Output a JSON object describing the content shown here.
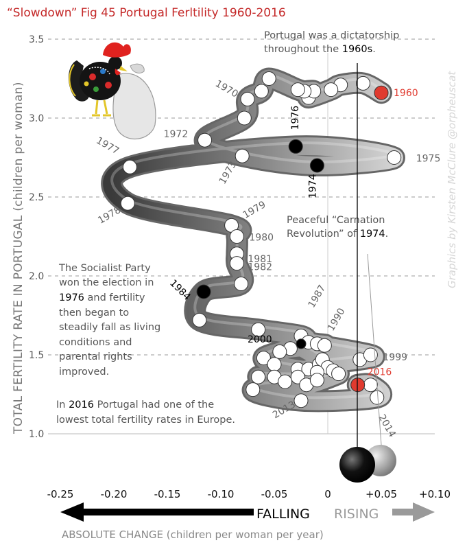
{
  "chart_data": {
    "type": "scatter",
    "title": "“Slowdown” Fig 45 Portugal Ferltility 1960-2016",
    "xlabel": "ABSOLUTE CHANGE (children per woman per year)",
    "ylabel": "TOTAL FERTILITY RATE IN PORTUGAL (children per woman)",
    "xlim": [
      -0.25,
      0.1
    ],
    "ylim": [
      1.0,
      3.5
    ],
    "grid": "horizontal-dashed",
    "x_ticks": [
      "-0.25",
      "-0.20",
      "-0.15",
      "-0.10",
      "-0.05",
      "0",
      "+0.05",
      "+0.10"
    ],
    "x_tick_values": [
      -0.25,
      -0.2,
      -0.15,
      -0.1,
      -0.05,
      0,
      0.05,
      0.1
    ],
    "y_ticks": [
      "1.0",
      "1.5",
      "2.0",
      "2.5",
      "3.0",
      "3.5"
    ],
    "y_tick_values": [
      1.0,
      1.5,
      2.0,
      2.5,
      3.0,
      3.5
    ],
    "direction_labels": {
      "falling": "FALLING",
      "rising": "RISING"
    },
    "points": [
      {
        "year": 1960,
        "x": 0.05,
        "y": 3.16,
        "color": "#e03a2f"
      },
      {
        "year": 1961,
        "x": 0.033,
        "y": 3.22
      },
      {
        "year": 1962,
        "x": 0.012,
        "y": 3.21
      },
      {
        "year": 1963,
        "x": 0.003,
        "y": 3.18
      },
      {
        "year": 1964,
        "x": -0.018,
        "y": 3.13
      },
      {
        "year": 1965,
        "x": -0.013,
        "y": 3.17
      },
      {
        "year": 1966,
        "x": -0.022,
        "y": 3.17
      },
      {
        "year": 1967,
        "x": -0.028,
        "y": 3.18
      },
      {
        "year": 1968,
        "x": -0.055,
        "y": 3.25
      },
      {
        "year": 1969,
        "x": -0.062,
        "y": 3.17
      },
      {
        "year": 1970,
        "x": -0.075,
        "y": 3.12
      },
      {
        "year": 1971,
        "x": -0.078,
        "y": 3.0
      },
      {
        "year": 1972,
        "x": -0.115,
        "y": 2.86
      },
      {
        "year": 1973,
        "x": -0.08,
        "y": 2.76
      },
      {
        "year": 1974,
        "x": -0.01,
        "y": 2.7,
        "color": "#000000"
      },
      {
        "year": 1975,
        "x": 0.062,
        "y": 2.75
      },
      {
        "year": 1976,
        "x": -0.03,
        "y": 2.82,
        "color": "#000000"
      },
      {
        "year": 1977,
        "x": -0.185,
        "y": 2.69
      },
      {
        "year": 1978,
        "x": -0.187,
        "y": 2.46
      },
      {
        "year": 1979,
        "x": -0.09,
        "y": 2.32
      },
      {
        "year": 1980,
        "x": -0.085,
        "y": 2.25
      },
      {
        "year": 1981,
        "x": -0.085,
        "y": 2.14
      },
      {
        "year": 1982,
        "x": -0.085,
        "y": 2.08
      },
      {
        "year": 1983,
        "x": -0.081,
        "y": 1.95
      },
      {
        "year": 1984,
        "x": -0.116,
        "y": 1.9,
        "color": "#000000"
      },
      {
        "year": 1985,
        "x": -0.12,
        "y": 1.72
      },
      {
        "year": 1986,
        "x": -0.065,
        "y": 1.66
      },
      {
        "year": 1987,
        "x": -0.025,
        "y": 1.62
      },
      {
        "year": 1988,
        "x": -0.018,
        "y": 1.58
      },
      {
        "year": 1989,
        "x": -0.01,
        "y": 1.57
      },
      {
        "year": 1990,
        "x": -0.003,
        "y": 1.56
      },
      {
        "year": 1991,
        "x": -0.035,
        "y": 1.54
      },
      {
        "year": 1992,
        "x": -0.045,
        "y": 1.52
      },
      {
        "year": 1993,
        "x": -0.06,
        "y": 1.48
      },
      {
        "year": 1994,
        "x": -0.05,
        "y": 1.44
      },
      {
        "year": 1995,
        "x": -0.028,
        "y": 1.41
      },
      {
        "year": 1996,
        "x": -0.018,
        "y": 1.41
      },
      {
        "year": 1997,
        "x": -0.008,
        "y": 1.44
      },
      {
        "year": 1998,
        "x": 0.03,
        "y": 1.47
      },
      {
        "year": 1999,
        "x": 0.04,
        "y": 1.5
      },
      {
        "year": 2000,
        "x": -0.025,
        "y": 1.57,
        "color": "#000000"
      },
      {
        "year": 2001,
        "x": -0.005,
        "y": 1.47
      },
      {
        "year": 2002,
        "x": 0.0,
        "y": 1.42
      },
      {
        "year": 2003,
        "x": 0.005,
        "y": 1.4
      },
      {
        "year": 2004,
        "x": -0.01,
        "y": 1.39
      },
      {
        "year": 2005,
        "x": -0.028,
        "y": 1.36
      },
      {
        "year": 2006,
        "x": -0.05,
        "y": 1.36
      },
      {
        "year": 2007,
        "x": -0.065,
        "y": 1.36
      },
      {
        "year": 2008,
        "x": -0.04,
        "y": 1.33
      },
      {
        "year": 2009,
        "x": -0.02,
        "y": 1.31
      },
      {
        "year": 2010,
        "x": 0.01,
        "y": 1.38
      },
      {
        "year": 2011,
        "x": -0.01,
        "y": 1.34
      },
      {
        "year": 2012,
        "x": -0.07,
        "y": 1.28
      },
      {
        "year": 2013,
        "x": -0.025,
        "y": 1.21
      },
      {
        "year": 2014,
        "x": 0.046,
        "y": 1.23
      },
      {
        "year": 2015,
        "x": 0.04,
        "y": 1.31
      },
      {
        "year": 2016,
        "x": 0.028,
        "y": 1.31,
        "color": "#e03a2f"
      }
    ],
    "year_labels": [
      {
        "text": "1960",
        "year": 1960,
        "color": "#e03a2f"
      },
      {
        "text": "1970",
        "year": 1970
      },
      {
        "text": "1972",
        "year": 1972
      },
      {
        "text": "1973",
        "year": 1973
      },
      {
        "text": "1974",
        "year": 1974,
        "color": "#000000"
      },
      {
        "text": "1975",
        "year": 1975
      },
      {
        "text": "1976",
        "year": 1976,
        "color": "#000000"
      },
      {
        "text": "1977",
        "year": 1977
      },
      {
        "text": "1978",
        "year": 1978
      },
      {
        "text": "1979",
        "year": 1979
      },
      {
        "text": "1980",
        "year": 1980
      },
      {
        "text": "1981",
        "year": 1981
      },
      {
        "text": "1982",
        "year": 1982
      },
      {
        "text": "1984",
        "year": 1984,
        "color": "#000000"
      },
      {
        "text": "1987",
        "year": 1987
      },
      {
        "text": "1990",
        "year": 1990
      },
      {
        "text": "1999",
        "year": 1999
      },
      {
        "text": "2000",
        "year": 2000,
        "color": "#000000"
      },
      {
        "text": "2013",
        "year": 2013
      },
      {
        "text": "2014",
        "year": 2014
      },
      {
        "text": "2016",
        "year": 2016,
        "color": "#e03a2f"
      }
    ],
    "annotations": {
      "dictatorship": [
        "Portugal was a dictatorship",
        "throughout the ",
        "1960s",
        "."
      ],
      "carnation": [
        "Peaceful “Carnation",
        "Revolution” of ",
        "1974",
        "."
      ],
      "socialist": [
        "The Socialist Party",
        "won the election in",
        "1976",
        " and fertility",
        "then began to",
        "steadily fall as living",
        "conditions and",
        "parental rights",
        "improved."
      ],
      "lowest": [
        "In ",
        "2016",
        " Portugal had one of the",
        "lowest total fertility rates in Europe."
      ]
    },
    "credit": "Graphics by Kirsten McClure @orpheuscat"
  }
}
